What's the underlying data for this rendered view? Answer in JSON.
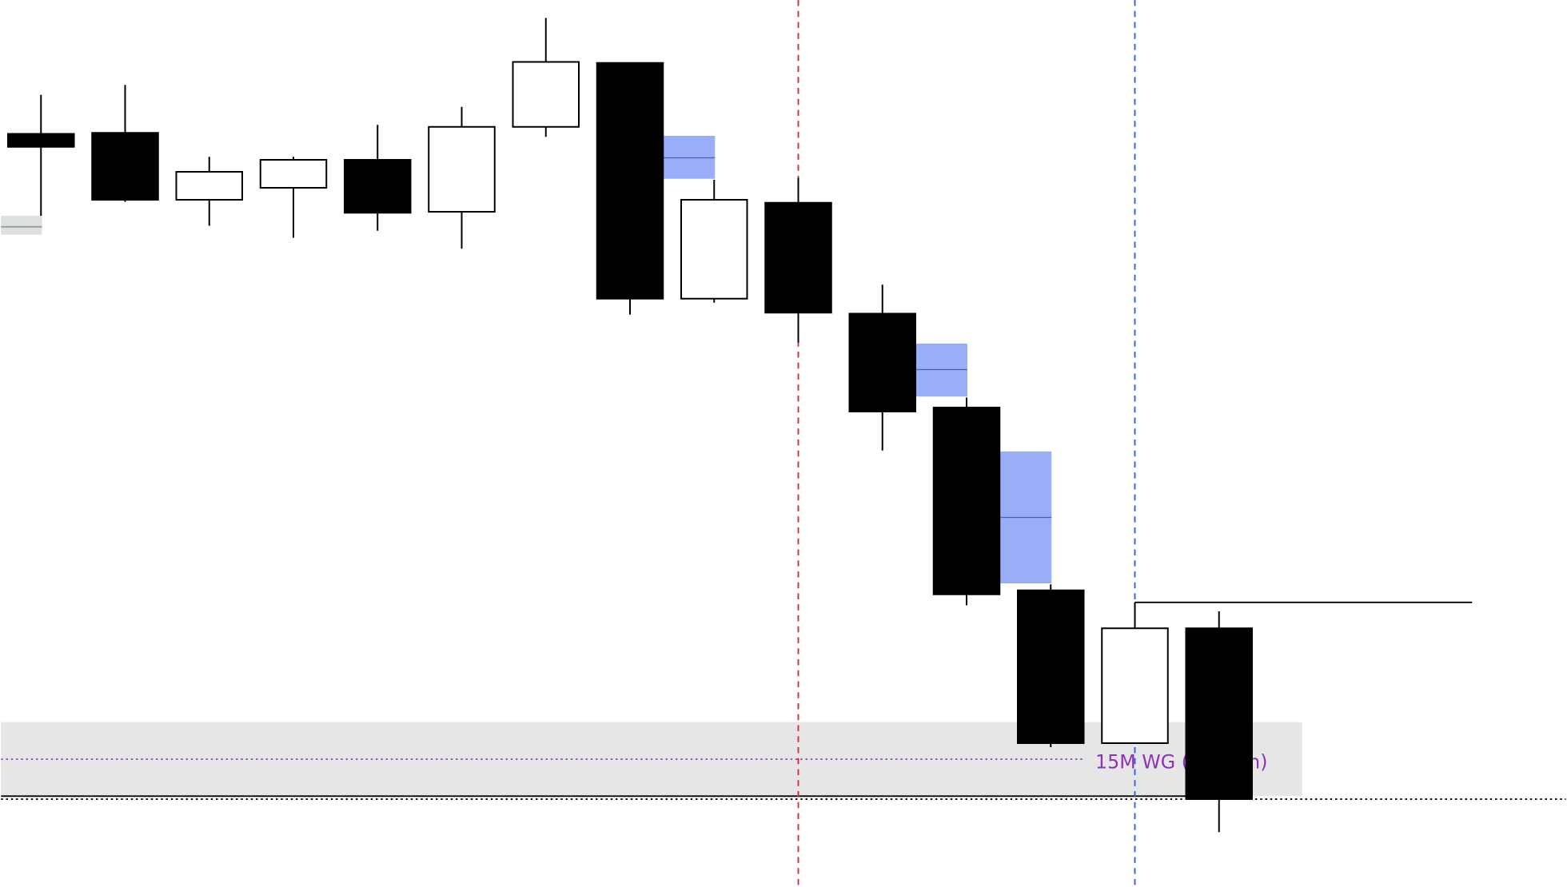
{
  "chart_data": {
    "type": "candlestick",
    "title": "",
    "price_axis_note": "no axis printed; prices in relative chart units",
    "candles": [
      {
        "o": 754,
        "h": 793,
        "l": 672,
        "c": 741
      },
      {
        "o": 755,
        "h": 803,
        "l": 686,
        "c": 688
      },
      {
        "o": 688,
        "h": 731,
        "l": 662,
        "c": 716
      },
      {
        "o": 700,
        "h": 731,
        "l": 650,
        "c": 728
      },
      {
        "o": 728,
        "h": 763,
        "l": 657,
        "c": 675
      },
      {
        "o": 676,
        "h": 781,
        "l": 639,
        "c": 761
      },
      {
        "o": 761,
        "h": 870,
        "l": 751,
        "c": 826
      },
      {
        "o": 825,
        "h": 825,
        "l": 573,
        "c": 589
      },
      {
        "o": 589,
        "h": 708,
        "l": 585,
        "c": 688
      },
      {
        "o": 685,
        "h": 710,
        "l": 545,
        "c": 575
      },
      {
        "o": 574,
        "h": 603,
        "l": 437,
        "c": 476
      },
      {
        "o": 480,
        "h": 490,
        "l": 282,
        "c": 293
      },
      {
        "o": 297,
        "h": 303,
        "l": 140,
        "c": 144
      },
      {
        "o": 144,
        "h": 285,
        "l": 144,
        "c": 259
      },
      {
        "o": 259,
        "h": 276,
        "l": 55,
        "c": 88
      }
    ],
    "fvg_boxes": [
      {
        "after_candle": 8,
        "top": 752,
        "bottom": 709,
        "mid": 730
      },
      {
        "after_candle": 11,
        "top": 544,
        "bottom": 491,
        "mid": 518
      },
      {
        "after_candle": 12,
        "top": 436,
        "bottom": 304,
        "mid": 370
      }
    ],
    "zone": {
      "label": "15M WG (Bearish)",
      "top": 165,
      "bottom": 91,
      "mid": 128,
      "label_color": "#8e33b8",
      "fill": "#e6e6e6"
    },
    "levels": [
      {
        "price": 91,
        "style": "solid",
        "color": "#000000"
      },
      {
        "price": 88,
        "style": "dotted",
        "color": "#000000"
      },
      {
        "price": 285,
        "style": "solid",
        "color": "#000000",
        "from_candle": 14
      }
    ],
    "vertical_markers": [
      {
        "at_candle": 10,
        "color": "#e0262e",
        "style": "dashed"
      },
      {
        "at_candle": 14,
        "color": "#2f5fe8",
        "style": "dashed"
      }
    ],
    "colors": {
      "bull": "#ffffff",
      "bear": "#000000",
      "fvg": "#9aaef7",
      "fvg_mid": "#4a5fb0",
      "outline": "#000000"
    }
  }
}
